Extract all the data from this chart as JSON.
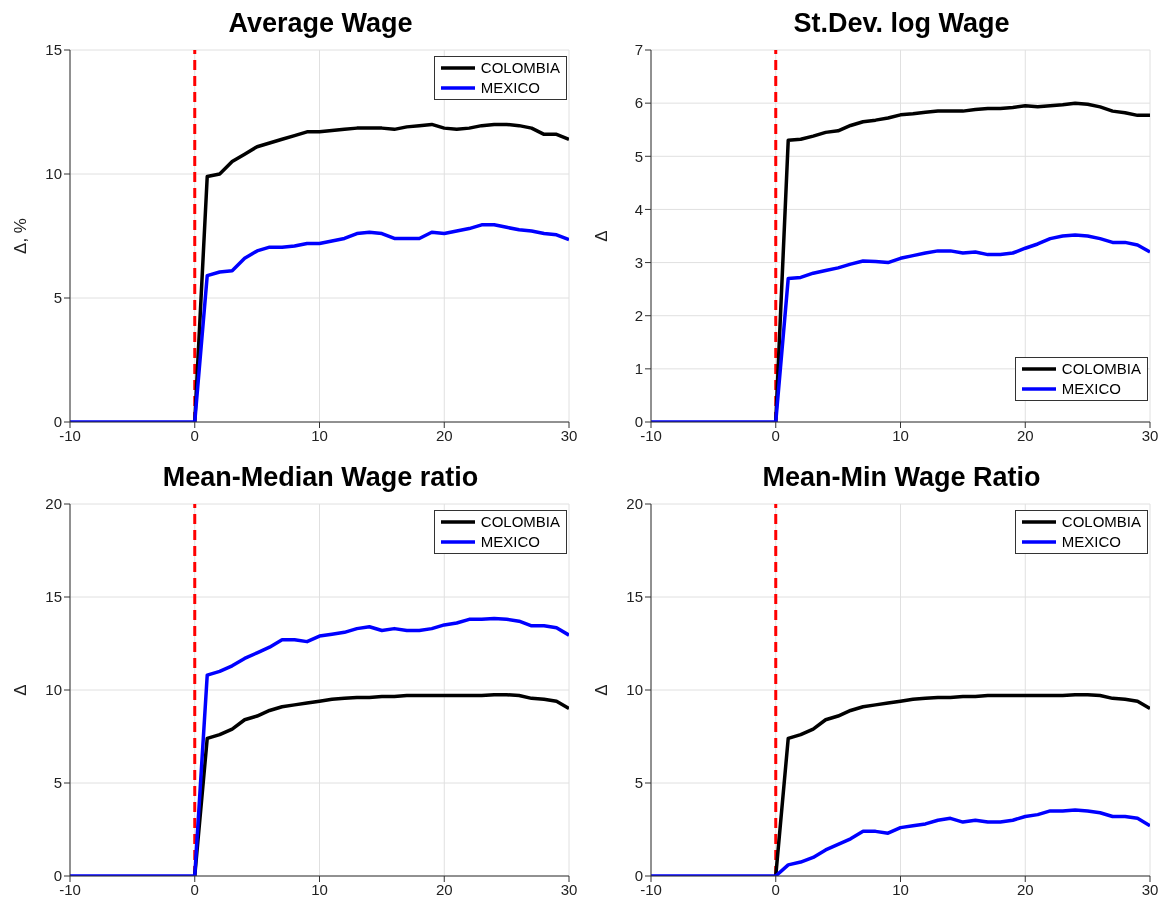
{
  "chart_data": [
    {
      "type": "line",
      "title": "Average Wage",
      "ylabel": "Δ, %",
      "x": [
        -10,
        -9,
        -8,
        -7,
        -6,
        -5,
        -4,
        -3,
        -2,
        -1,
        0,
        1,
        2,
        3,
        4,
        5,
        6,
        7,
        8,
        9,
        10,
        11,
        12,
        13,
        14,
        15,
        16,
        17,
        18,
        19,
        20,
        21,
        22,
        23,
        24,
        25,
        26,
        27,
        28,
        29,
        30
      ],
      "xlim": [
        -10,
        30
      ],
      "xticks": [
        -10,
        0,
        10,
        20,
        30
      ],
      "ylim": [
        0,
        15
      ],
      "yticks": [
        0,
        5,
        10,
        15
      ],
      "grid": true,
      "legend": "top right",
      "ref_lines": [
        {
          "axis": "x",
          "value": 0,
          "color": "#ff0000",
          "line_style": "dashed"
        }
      ],
      "series": [
        {
          "name": "COLOMBIA",
          "color": "#000000",
          "values": [
            null,
            null,
            null,
            null,
            null,
            null,
            null,
            null,
            null,
            null,
            0,
            9.9,
            10.0,
            10.5,
            10.8,
            11.1,
            11.25,
            11.4,
            11.55,
            11.7,
            11.7,
            11.75,
            11.8,
            11.85,
            11.85,
            11.85,
            11.8,
            11.9,
            11.95,
            12.0,
            11.85,
            11.8,
            11.85,
            11.95,
            12.0,
            12.0,
            11.95,
            11.85,
            11.6,
            11.6,
            11.4
          ]
        },
        {
          "name": "MEXICO",
          "color": "#0000ff",
          "values": [
            0,
            0,
            0,
            0,
            0,
            0,
            0,
            0,
            0,
            0,
            0,
            5.9,
            6.05,
            6.1,
            6.6,
            6.9,
            7.05,
            7.05,
            7.1,
            7.2,
            7.2,
            7.3,
            7.4,
            7.6,
            7.65,
            7.6,
            7.4,
            7.4,
            7.4,
            7.65,
            7.6,
            7.7,
            7.8,
            7.95,
            7.95,
            7.85,
            7.75,
            7.7,
            7.6,
            7.55,
            7.35
          ]
        }
      ]
    },
    {
      "type": "line",
      "title": "St.Dev. log Wage",
      "ylabel": "Δ",
      "x": [
        -10,
        -9,
        -8,
        -7,
        -6,
        -5,
        -4,
        -3,
        -2,
        -1,
        0,
        1,
        2,
        3,
        4,
        5,
        6,
        7,
        8,
        9,
        10,
        11,
        12,
        13,
        14,
        15,
        16,
        17,
        18,
        19,
        20,
        21,
        22,
        23,
        24,
        25,
        26,
        27,
        28,
        29,
        30
      ],
      "xlim": [
        -10,
        30
      ],
      "xticks": [
        -10,
        0,
        10,
        20,
        30
      ],
      "ylim": [
        0,
        7
      ],
      "yticks": [
        0,
        1,
        2,
        3,
        4,
        5,
        6,
        7
      ],
      "grid": true,
      "legend": "bottom right",
      "ref_lines": [
        {
          "axis": "x",
          "value": 0,
          "color": "#ff0000",
          "line_style": "dashed"
        }
      ],
      "series": [
        {
          "name": "COLOMBIA",
          "color": "#000000",
          "values": [
            null,
            null,
            null,
            null,
            null,
            null,
            null,
            null,
            null,
            null,
            0,
            5.3,
            5.32,
            5.38,
            5.45,
            5.48,
            5.58,
            5.65,
            5.68,
            5.72,
            5.78,
            5.8,
            5.83,
            5.85,
            5.85,
            5.85,
            5.88,
            5.9,
            5.9,
            5.92,
            5.95,
            5.93,
            5.95,
            5.97,
            6.0,
            5.98,
            5.93,
            5.85,
            5.82,
            5.77,
            5.77
          ]
        },
        {
          "name": "MEXICO",
          "color": "#0000ff",
          "values": [
            0,
            0,
            0,
            0,
            0,
            0,
            0,
            0,
            0,
            0,
            0,
            2.7,
            2.72,
            2.8,
            2.85,
            2.9,
            2.97,
            3.03,
            3.02,
            3.0,
            3.08,
            3.13,
            3.18,
            3.22,
            3.22,
            3.18,
            3.2,
            3.15,
            3.15,
            3.18,
            3.27,
            3.35,
            3.45,
            3.5,
            3.52,
            3.5,
            3.45,
            3.38,
            3.38,
            3.33,
            3.2
          ]
        }
      ]
    },
    {
      "type": "line",
      "title": "Mean-Median Wage ratio",
      "ylabel": "Δ",
      "x": [
        -10,
        -9,
        -8,
        -7,
        -6,
        -5,
        -4,
        -3,
        -2,
        -1,
        0,
        1,
        2,
        3,
        4,
        5,
        6,
        7,
        8,
        9,
        10,
        11,
        12,
        13,
        14,
        15,
        16,
        17,
        18,
        19,
        20,
        21,
        22,
        23,
        24,
        25,
        26,
        27,
        28,
        29,
        30
      ],
      "xlim": [
        -10,
        30
      ],
      "xticks": [
        -10,
        0,
        10,
        20,
        30
      ],
      "ylim": [
        0,
        20
      ],
      "yticks": [
        0,
        5,
        10,
        15,
        20
      ],
      "grid": true,
      "legend": "top right",
      "ref_lines": [
        {
          "axis": "x",
          "value": 0,
          "color": "#ff0000",
          "line_style": "dashed"
        }
      ],
      "series": [
        {
          "name": "COLOMBIA",
          "color": "#000000",
          "values": [
            null,
            null,
            null,
            null,
            null,
            null,
            null,
            null,
            null,
            null,
            0,
            7.4,
            7.6,
            7.9,
            8.4,
            8.6,
            8.9,
            9.1,
            9.2,
            9.3,
            9.4,
            9.5,
            9.55,
            9.6,
            9.6,
            9.65,
            9.65,
            9.7,
            9.7,
            9.7,
            9.7,
            9.7,
            9.7,
            9.7,
            9.75,
            9.75,
            9.7,
            9.55,
            9.5,
            9.4,
            9.0
          ]
        },
        {
          "name": "MEXICO",
          "color": "#0000ff",
          "values": [
            0,
            0,
            0,
            0,
            0,
            0,
            0,
            0,
            0,
            0,
            0,
            10.8,
            11.0,
            11.3,
            11.7,
            12.0,
            12.3,
            12.7,
            12.7,
            12.6,
            12.9,
            13.0,
            13.1,
            13.3,
            13.4,
            13.2,
            13.3,
            13.2,
            13.2,
            13.3,
            13.5,
            13.6,
            13.8,
            13.8,
            13.85,
            13.8,
            13.7,
            13.45,
            13.45,
            13.35,
            12.95
          ]
        }
      ]
    },
    {
      "type": "line",
      "title": "Mean-Min Wage Ratio",
      "ylabel": "Δ",
      "x": [
        -10,
        -9,
        -8,
        -7,
        -6,
        -5,
        -4,
        -3,
        -2,
        -1,
        0,
        1,
        2,
        3,
        4,
        5,
        6,
        7,
        8,
        9,
        10,
        11,
        12,
        13,
        14,
        15,
        16,
        17,
        18,
        19,
        20,
        21,
        22,
        23,
        24,
        25,
        26,
        27,
        28,
        29,
        30
      ],
      "xlim": [
        -10,
        30
      ],
      "xticks": [
        -10,
        0,
        10,
        20,
        30
      ],
      "ylim": [
        0,
        20
      ],
      "yticks": [
        0,
        5,
        10,
        15,
        20
      ],
      "grid": true,
      "legend": "top right",
      "ref_lines": [
        {
          "axis": "x",
          "value": 0,
          "color": "#ff0000",
          "line_style": "dashed"
        }
      ],
      "series": [
        {
          "name": "COLOMBIA",
          "color": "#000000",
          "values": [
            null,
            null,
            null,
            null,
            null,
            null,
            null,
            null,
            null,
            null,
            0,
            7.4,
            7.6,
            7.9,
            8.4,
            8.6,
            8.9,
            9.1,
            9.2,
            9.3,
            9.4,
            9.5,
            9.55,
            9.6,
            9.6,
            9.65,
            9.65,
            9.7,
            9.7,
            9.7,
            9.7,
            9.7,
            9.7,
            9.7,
            9.75,
            9.75,
            9.7,
            9.55,
            9.5,
            9.4,
            9.0
          ]
        },
        {
          "name": "MEXICO",
          "color": "#0000ff",
          "values": [
            0,
            0,
            0,
            0,
            0,
            0,
            0,
            0,
            0,
            0,
            0,
            0.6,
            0.75,
            1.0,
            1.4,
            1.7,
            2.0,
            2.4,
            2.4,
            2.3,
            2.6,
            2.7,
            2.8,
            3.0,
            3.1,
            2.9,
            3.0,
            2.9,
            2.9,
            3.0,
            3.2,
            3.3,
            3.5,
            3.5,
            3.55,
            3.5,
            3.4,
            3.2,
            3.2,
            3.1,
            2.7
          ]
        }
      ]
    }
  ]
}
